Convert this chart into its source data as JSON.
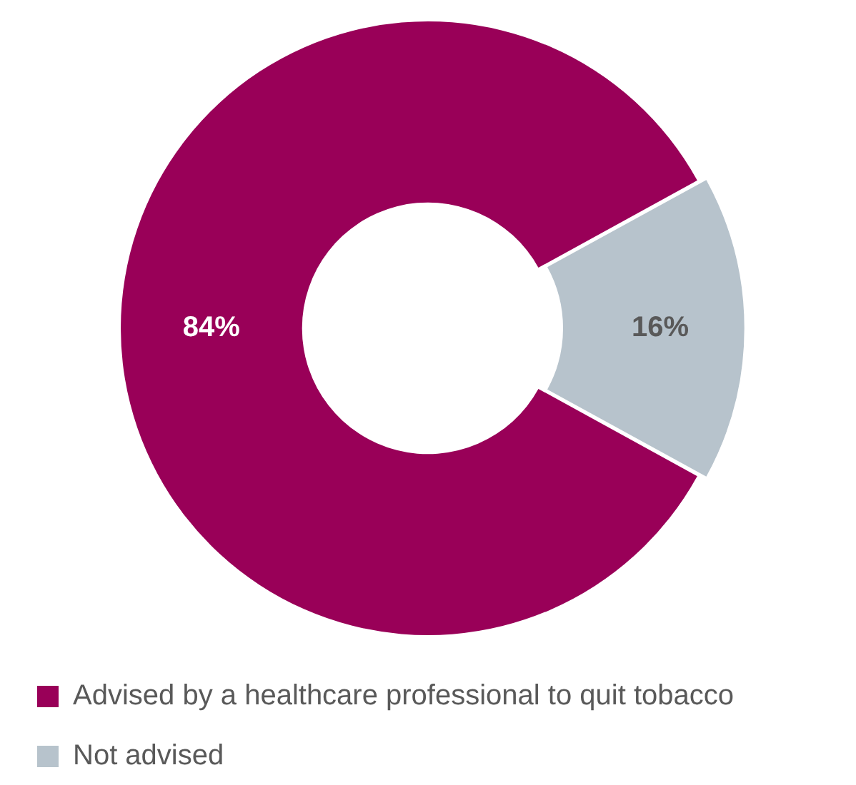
{
  "chart_data": {
    "type": "donut",
    "categories": [
      "Advised by a healthcare professional to quit tobacco",
      "Not advised"
    ],
    "values": [
      84,
      16
    ],
    "colors": [
      "#990058",
      "#b7c3cc"
    ],
    "value_labels": [
      "84%",
      "16%"
    ],
    "legend": "bottom"
  }
}
